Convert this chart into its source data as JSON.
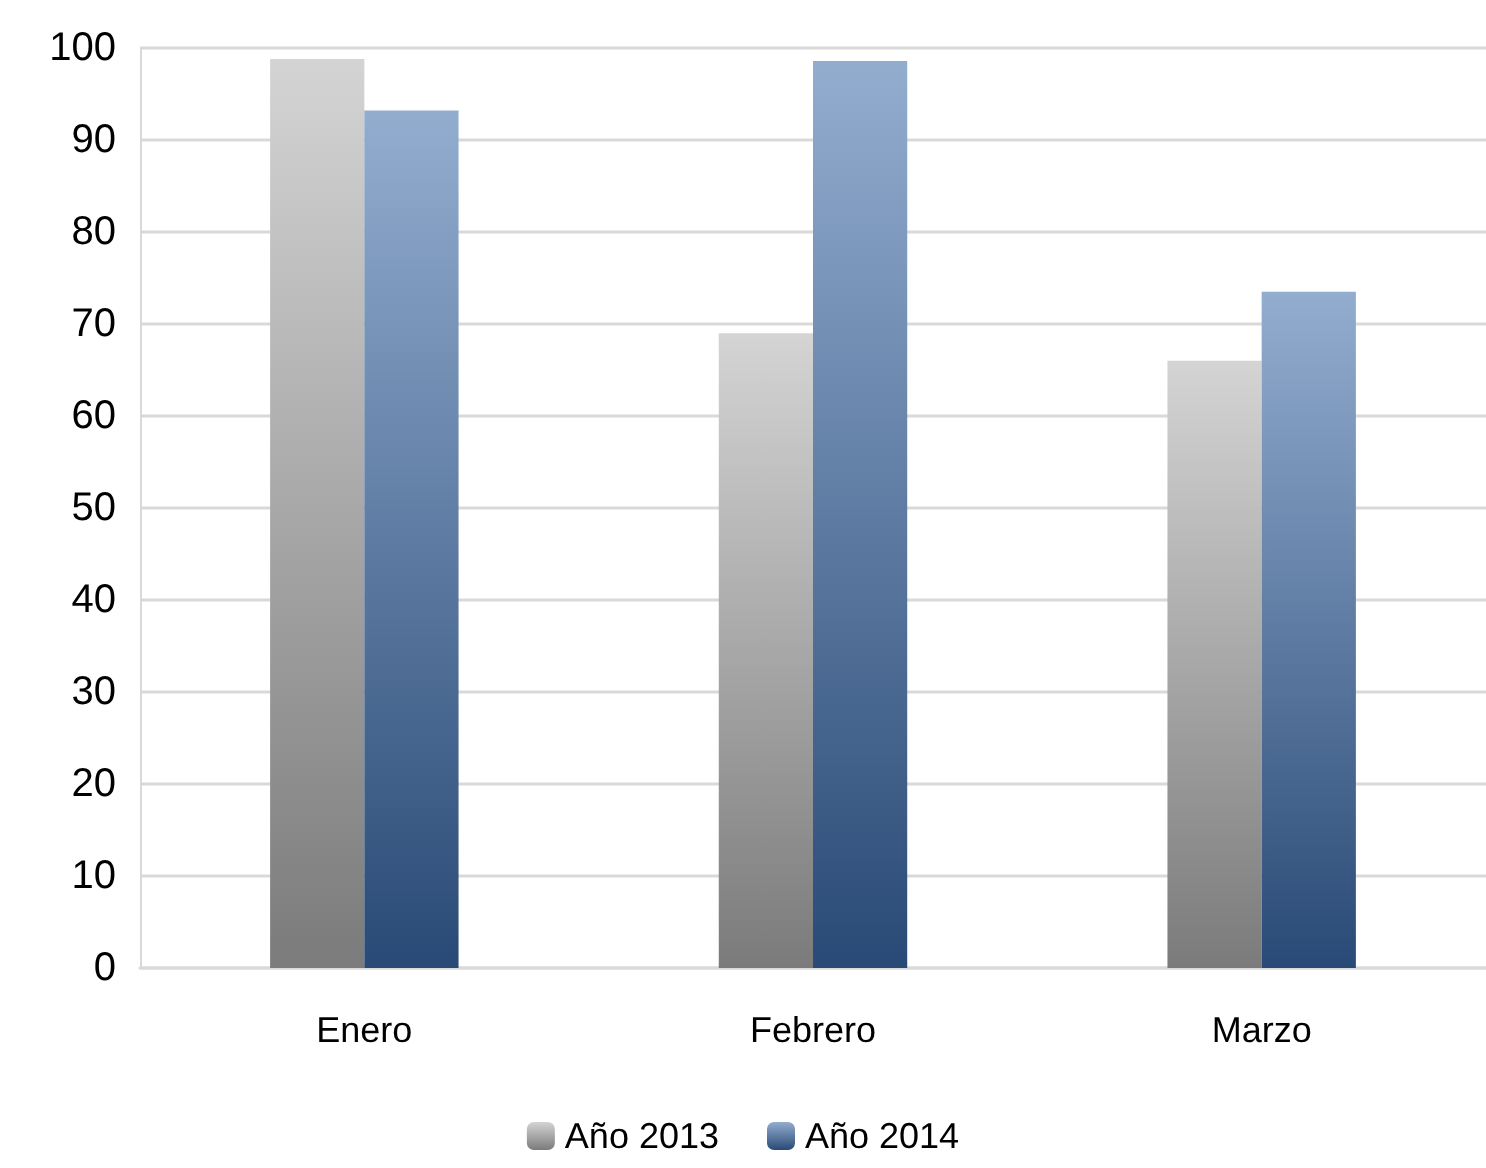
{
  "chart_data": {
    "type": "bar",
    "categories": [
      "Enero",
      "Febrero",
      "Marzo"
    ],
    "series": [
      {
        "name": "Año 2013",
        "color": "#b0b0b0",
        "values": [
          98.8,
          69,
          66
        ]
      },
      {
        "name": "Año 2014",
        "color": "#3a69a8",
        "values": [
          93.2,
          98.6,
          73.5
        ]
      }
    ],
    "ylim": [
      0,
      100
    ],
    "yticks": [
      0,
      10,
      20,
      30,
      40,
      50,
      60,
      70,
      80,
      90,
      100
    ],
    "grid": "y",
    "legend": "bottom"
  }
}
